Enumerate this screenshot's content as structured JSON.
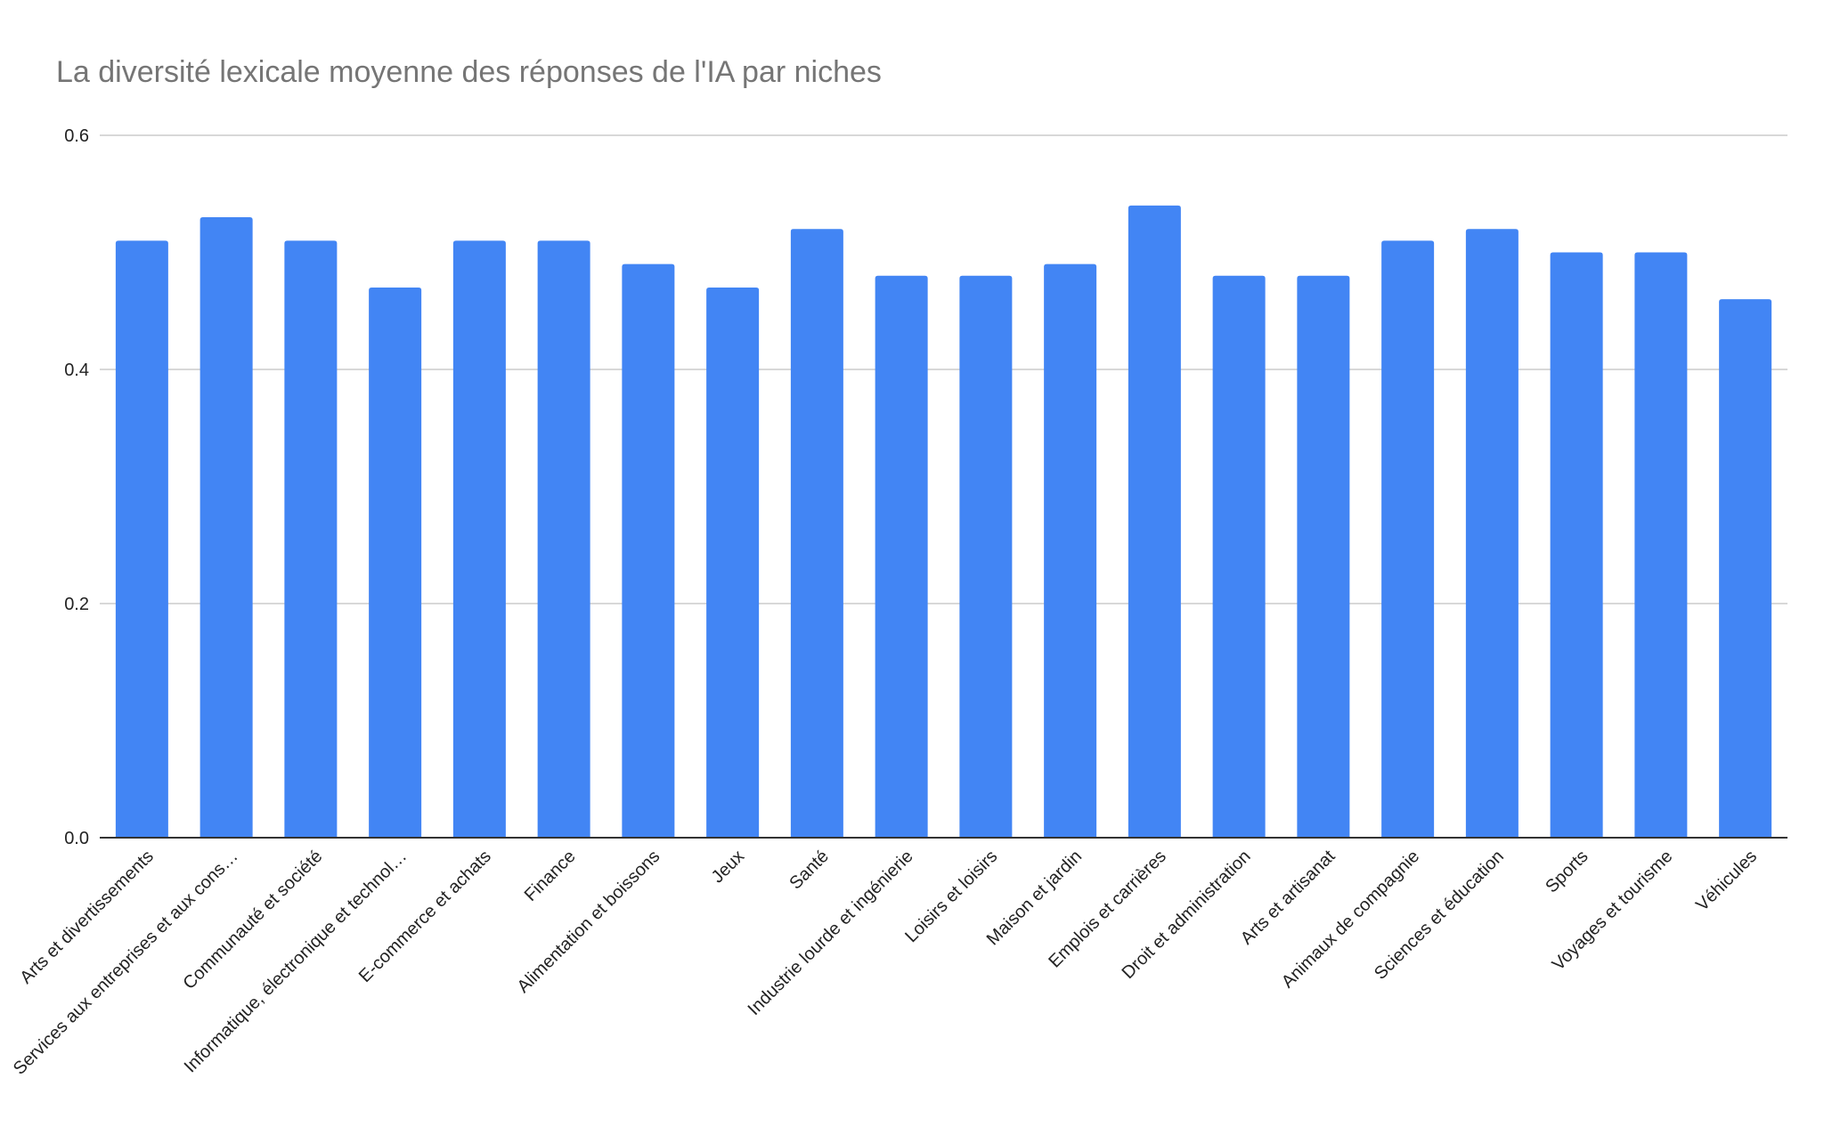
{
  "chart_data": {
    "type": "bar",
    "title": "La diversité lexicale moyenne des réponses de l'IA par niches",
    "xlabel": "",
    "ylabel": "",
    "ylim": [
      0,
      0.6
    ],
    "yticks": [
      "0.0",
      "0.2",
      "0.4",
      "0.6"
    ],
    "grid": true,
    "legend": "none",
    "color": "#4285f4",
    "categories": [
      "Arts et divertissements",
      "Services aux entreprises et aux cons…",
      "Communauté et société",
      "Informatique, électronique et technol…",
      "E-commerce et achats",
      "Finance",
      "Alimentation et boissons",
      "Jeux",
      "Santé",
      "Industrie lourde et ingénierie",
      "Loisirs et loisirs",
      "Maison et jardin",
      "Emplois et carrières",
      "Droit et administration",
      "Arts et artisanat",
      "Animaux de compagnie",
      "Sciences et éducation",
      "Sports",
      "Voyages et tourisme",
      "Véhicules"
    ],
    "values": [
      0.51,
      0.53,
      0.51,
      0.47,
      0.51,
      0.51,
      0.49,
      0.47,
      0.52,
      0.48,
      0.48,
      0.49,
      0.54,
      0.48,
      0.48,
      0.51,
      0.52,
      0.5,
      0.5,
      0.46
    ]
  }
}
